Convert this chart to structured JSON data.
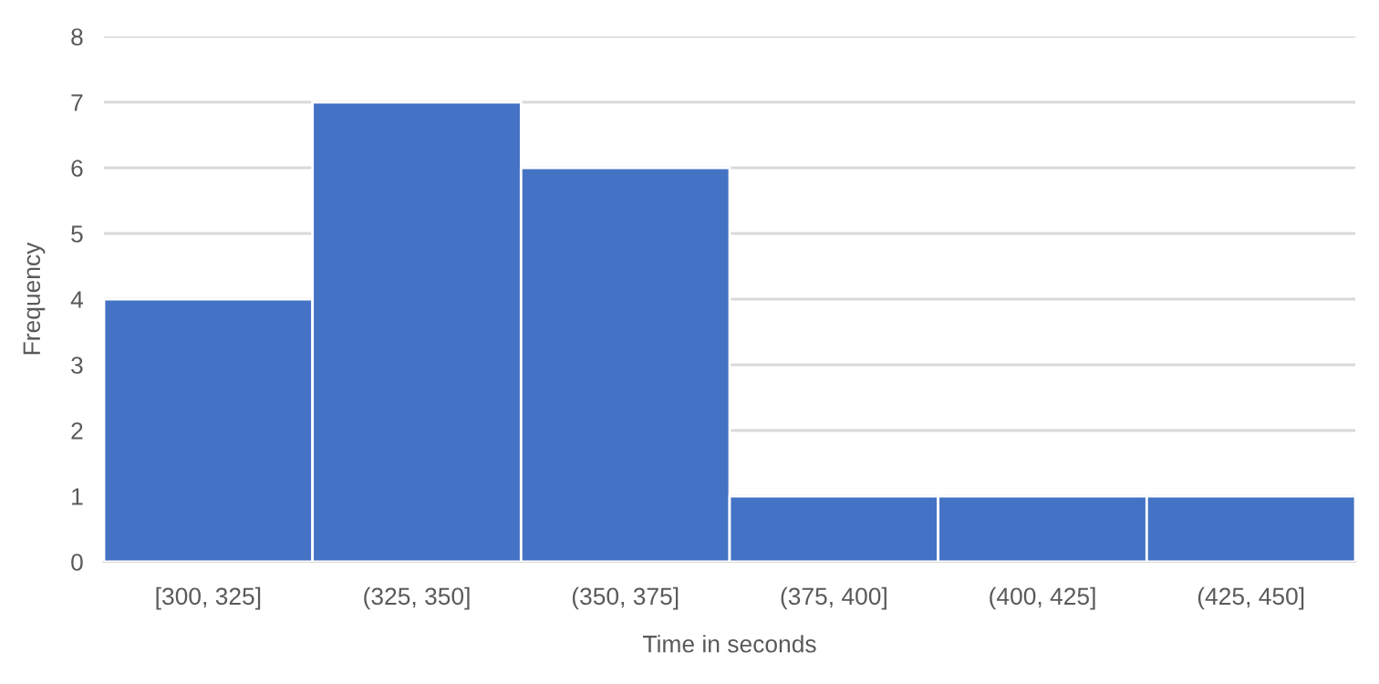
{
  "chart_data": {
    "type": "bar",
    "xlabel": "Time in seconds",
    "ylabel": "Frequency",
    "categories": [
      "[300, 325]",
      "(325, 350]",
      "(350, 375]",
      "(375, 400]",
      "(400, 425]",
      "(425, 450]"
    ],
    "values": [
      4,
      7,
      6,
      1,
      1,
      1
    ],
    "color": "#4472c4",
    "ylim": [
      0,
      8
    ],
    "yticks": [
      0,
      1,
      2,
      3,
      4,
      5,
      6,
      7,
      8
    ],
    "grid": "y"
  }
}
